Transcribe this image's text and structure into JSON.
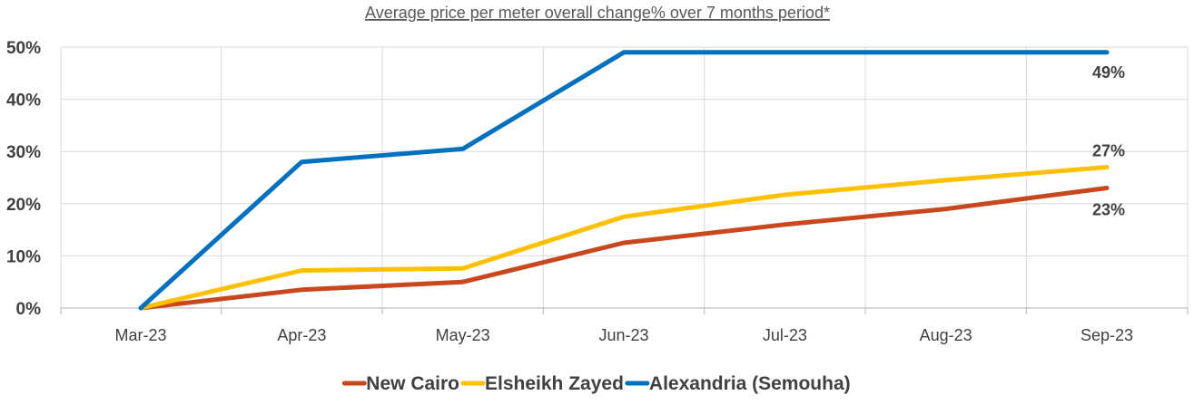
{
  "chart_data": {
    "type": "line",
    "title": "Average price per meter overall change% over 7 months period*",
    "categories": [
      "Mar-23",
      "Apr-23",
      "May-23",
      "Jun-23",
      "Jul-23",
      "Aug-23",
      "Sep-23"
    ],
    "ylim": [
      0,
      50
    ],
    "yticks": [
      "0%",
      "10%",
      "20%",
      "30%",
      "40%",
      "50%"
    ],
    "grid": true,
    "legend_position": "bottom",
    "series": [
      {
        "name": "New Cairo",
        "color": "#C9471D",
        "values": [
          0,
          3.5,
          5,
          12.5,
          16,
          19,
          23
        ],
        "end_label": "23%"
      },
      {
        "name": "Elsheikh Zayed",
        "color": "#FFC000",
        "values": [
          0,
          7.2,
          7.6,
          17.5,
          21.7,
          24.5,
          27
        ],
        "end_label": "27%"
      },
      {
        "name": "Alexandria (Semouha)",
        "color": "#0070C0",
        "values": [
          0,
          28,
          30.5,
          49,
          49,
          49,
          49
        ],
        "end_label": "49%"
      }
    ]
  }
}
